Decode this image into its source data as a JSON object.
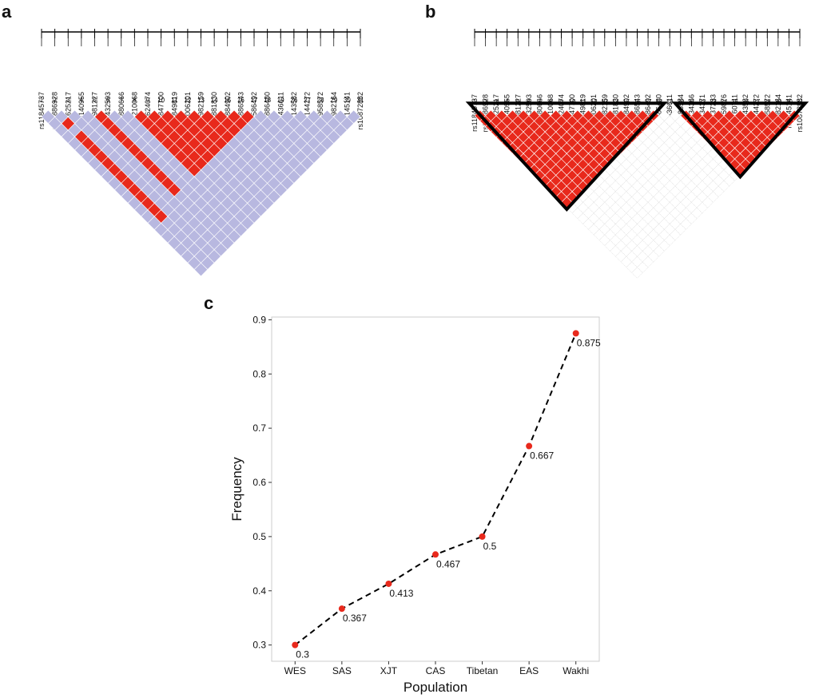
{
  "panel_a": {
    "letter": "a",
    "snps": [
      "rs11845737",
      "rs12886928",
      "rs11625217",
      "rs10140955",
      "rs4981227",
      "rs12432593",
      "rs880666",
      "rs2210068",
      "rs4624074",
      "rs11847700",
      "rs11849819",
      "rs1006201",
      "rs4982159",
      "rs12881830",
      "rs12884902",
      "rs12886543",
      "rs12586492",
      "rs12886480",
      "rs12436611",
      "rs7143582",
      "rs7144272",
      "rs1958572",
      "rs4982164",
      "rs7145141",
      "rs10872882"
    ],
    "numbers": [
      1,
      2,
      3,
      4,
      5,
      6,
      7,
      8,
      9,
      10,
      11,
      12,
      13,
      14,
      15,
      16,
      17,
      18,
      19,
      26,
      27,
      28,
      29,
      30,
      31
    ],
    "red_ranges": [
      [
        1,
        3,
        3
      ],
      [
        1,
        5,
        17
      ],
      [
        4,
        5,
        16
      ],
      [
        7,
        8,
        16
      ],
      [
        8,
        9,
        16
      ],
      [
        9,
        10,
        16
      ],
      [
        10,
        11,
        16
      ],
      [
        11,
        12,
        16
      ],
      [
        12,
        13,
        16
      ],
      [
        13,
        14,
        16
      ],
      [
        14,
        15,
        16
      ],
      [
        15,
        16,
        16
      ]
    ]
  },
  "panel_b": {
    "letter": "b",
    "snps": [
      "rs11845737",
      "rs12886928",
      "rs11625217",
      "rs10140955",
      "rs4981227",
      "rs12432593",
      "rs880666",
      "rs2210068",
      "rs4624074",
      "rs11847700",
      "rs11849819",
      "rs1006201",
      "rs4982159",
      "rs12881830",
      "rs12884902",
      "rs12586543",
      "rs12586492",
      "rs12886480",
      "rs12436611",
      "rs2383584",
      "rs12434366",
      "rs12434371",
      "rs12437233",
      "rs7159876",
      "rs7160711",
      "rs7143582",
      "rs7144272",
      "rs1958572",
      "rs4982164",
      "rs7145141",
      "rs10872882"
    ],
    "numbers": [
      1,
      2,
      3,
      4,
      5,
      6,
      7,
      8,
      9,
      10,
      11,
      12,
      13,
      14,
      15,
      16,
      17,
      18,
      19,
      20,
      21,
      22,
      23,
      24,
      25,
      26,
      27,
      28,
      29,
      30,
      31
    ],
    "blocks": [
      [
        0,
        17
      ],
      [
        19,
        30
      ]
    ]
  },
  "chart_data": {
    "type": "line",
    "letter": "c",
    "x_label": "Population",
    "y_label": "Frequency",
    "categories": [
      "WES",
      "SAS",
      "XJT",
      "CAS",
      "Tibetan",
      "EAS",
      "Wakhi"
    ],
    "series": [
      {
        "color": "#e8291c",
        "values": [
          0.3,
          0.367,
          0.413,
          0.467,
          0.5,
          0.667,
          0.875
        ]
      }
    ],
    "ylim": [
      0.27,
      0.905
    ],
    "yticks": [
      0.3,
      0.4,
      0.5,
      0.6,
      0.7,
      0.8,
      0.9
    ]
  }
}
